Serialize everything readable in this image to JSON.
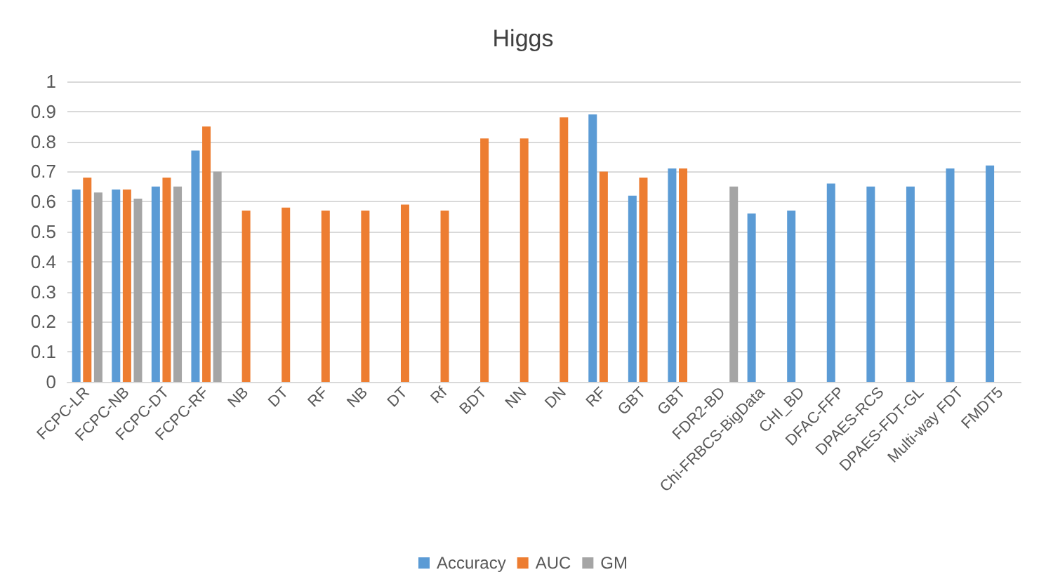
{
  "chart_data": {
    "type": "bar",
    "title": "Higgs",
    "categories": [
      "FCPC-LR",
      "FCPC-NB",
      "FCPC-DT",
      "FCPC-RF",
      "NB",
      "DT",
      "RF",
      "NB",
      "DT",
      "Rf",
      "BDT",
      "NN",
      "DN",
      "RF",
      "GBT",
      "GBT",
      "FDR2-BD",
      "Chi-FRBCS-BigData",
      "CHI_BD",
      "DFAC-FFP",
      "DPAES-RCS",
      "DPAES-FDT-GL",
      "Multi-way FDT",
      "FMDT5"
    ],
    "series": [
      {
        "name": "Accuracy",
        "color": "#5b9bd5",
        "values": [
          0.64,
          0.64,
          0.65,
          0.77,
          null,
          null,
          null,
          null,
          null,
          null,
          null,
          null,
          null,
          0.89,
          0.62,
          0.71,
          null,
          0.56,
          0.57,
          0.66,
          0.65,
          0.65,
          0.71,
          0.72
        ]
      },
      {
        "name": "AUC",
        "color": "#ed7d31",
        "values": [
          0.68,
          0.64,
          0.68,
          0.85,
          0.57,
          0.58,
          0.57,
          0.57,
          0.59,
          0.57,
          0.81,
          0.81,
          0.88,
          0.7,
          0.68,
          0.71,
          null,
          null,
          null,
          null,
          null,
          null,
          null,
          null
        ]
      },
      {
        "name": "GM",
        "color": "#a5a5a5",
        "values": [
          0.63,
          0.61,
          0.65,
          0.7,
          null,
          null,
          null,
          null,
          null,
          null,
          null,
          null,
          null,
          null,
          null,
          null,
          0.65,
          null,
          null,
          null,
          null,
          null,
          null,
          null
        ]
      }
    ],
    "ylim": [
      0,
      1
    ],
    "yticks": [
      0,
      0.1,
      0.2,
      0.3,
      0.4,
      0.5,
      0.6,
      0.7,
      0.8,
      0.9,
      1
    ],
    "grid": "y",
    "legend": "bottom"
  }
}
